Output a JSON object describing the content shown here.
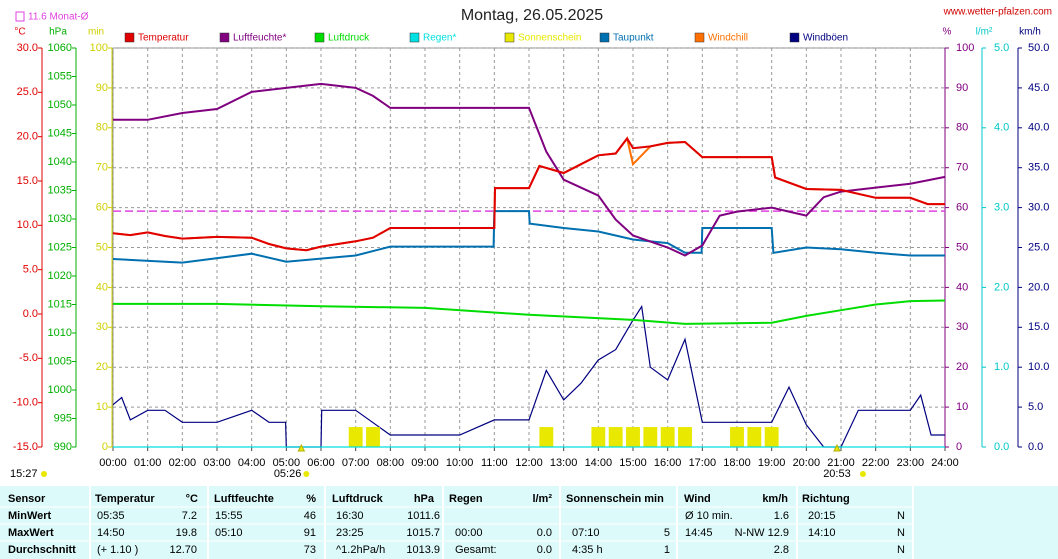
{
  "chart_data": {
    "type": "line",
    "title": "Montag, 26.05.2025",
    "source": "www.wetter-pfalzen.com",
    "monthly_mean": {
      "value": 11.6,
      "label": "11.6 Monat-Ø",
      "color": "#e040e0",
      "axis": "temp"
    },
    "updated": "15:27",
    "sunrise": "05:26",
    "sunset": "20:53",
    "grid": true,
    "xlim": [
      0,
      24
    ],
    "xticks": [
      {
        "value": 0,
        "label": "00:00"
      },
      {
        "value": 1,
        "label": "01:00"
      },
      {
        "value": 2,
        "label": "02:00"
      },
      {
        "value": 3,
        "label": "03:00"
      },
      {
        "value": 4,
        "label": "04:00"
      },
      {
        "value": 5,
        "label": "05:00"
      },
      {
        "value": 6,
        "label": "06:00"
      },
      {
        "value": 7,
        "label": "07:00"
      },
      {
        "value": 8,
        "label": "08:00"
      },
      {
        "value": 9,
        "label": "09:00"
      },
      {
        "value": 10,
        "label": "10:00"
      },
      {
        "value": 11,
        "label": "11:00"
      },
      {
        "value": 12,
        "label": "12:00"
      },
      {
        "value": 13,
        "label": "13:00"
      },
      {
        "value": 14,
        "label": "14:00"
      },
      {
        "value": 15,
        "label": "15:00"
      },
      {
        "value": 16,
        "label": "16:00"
      },
      {
        "value": 17,
        "label": "17:00"
      },
      {
        "value": 18,
        "label": "18:00"
      },
      {
        "value": 19,
        "label": "19:00"
      },
      {
        "value": 20,
        "label": "20:00"
      },
      {
        "value": 21,
        "label": "21:00"
      },
      {
        "value": 22,
        "label": "22:00"
      },
      {
        "value": 23,
        "label": "23:00"
      },
      {
        "value": 24,
        "label": "24:00"
      }
    ],
    "axes": {
      "temp": {
        "unit": "°C",
        "color": "#e00000",
        "side": "left",
        "lim": [
          -15,
          30
        ],
        "ticks": [
          {
            "value": -15,
            "label": "-15.0"
          },
          {
            "value": -10,
            "label": "-10.0"
          },
          {
            "value": -5,
            "label": "-5.0"
          },
          {
            "value": 0,
            "label": "0.0"
          },
          {
            "value": 5,
            "label": "5.0"
          },
          {
            "value": 10,
            "label": "10.0"
          },
          {
            "value": 15,
            "label": "15.0"
          },
          {
            "value": 20,
            "label": "20.0"
          },
          {
            "value": 25,
            "label": "25.0"
          },
          {
            "value": 30,
            "label": "30.0"
          }
        ]
      },
      "hpa": {
        "unit": "hPa",
        "color": "#00b000",
        "side": "left",
        "lim": [
          990,
          1060
        ],
        "ticks": [
          990,
          995,
          1000,
          1005,
          1010,
          1015,
          1020,
          1025,
          1030,
          1035,
          1040,
          1045,
          1050,
          1055,
          1060
        ]
      },
      "min": {
        "unit": "min",
        "color": "#d0d000",
        "side": "left",
        "lim": [
          0,
          100
        ],
        "ticks": [
          0,
          10,
          20,
          30,
          40,
          50,
          60,
          70,
          80,
          90,
          100
        ]
      },
      "pct": {
        "unit": "%",
        "color": "#800080",
        "side": "right",
        "lim": [
          0,
          100
        ],
        "grid": true,
        "ticks": [
          0,
          10,
          20,
          30,
          40,
          50,
          60,
          70,
          80,
          90,
          100
        ]
      },
      "rain": {
        "unit": "l/m²",
        "color": "#00c8c8",
        "side": "right",
        "lim": [
          0,
          5
        ],
        "ticks": [
          {
            "value": 0,
            "label": "0.0"
          },
          {
            "value": 1,
            "label": "1.0"
          },
          {
            "value": 2,
            "label": "2.0"
          },
          {
            "value": 3,
            "label": "3.0"
          },
          {
            "value": 4,
            "label": "4.0"
          },
          {
            "value": 5,
            "label": "5.0"
          }
        ]
      },
      "kmh": {
        "unit": "km/h",
        "color": "#000080",
        "side": "right",
        "lim": [
          0,
          50
        ],
        "ticks": [
          {
            "value": 0,
            "label": "0.0"
          },
          {
            "value": 5,
            "label": "5.0"
          },
          {
            "value": 10,
            "label": "10.0"
          },
          {
            "value": 15,
            "label": "15.0"
          },
          {
            "value": 20,
            "label": "20.0"
          },
          {
            "value": 25,
            "label": "25.0"
          },
          {
            "value": 30,
            "label": "30.0"
          },
          {
            "value": 35,
            "label": "35.0"
          },
          {
            "value": 40,
            "label": "40.0"
          },
          {
            "value": 45,
            "label": "45.0"
          },
          {
            "value": 50,
            "label": "50.0"
          }
        ]
      }
    },
    "series": [
      {
        "name": "Temperatur",
        "color": "#e00000",
        "axis": "temp",
        "x": [
          0,
          0.5,
          1,
          1.5,
          2,
          3,
          4,
          4.5,
          5,
          5.58,
          6,
          7,
          7.5,
          8,
          11,
          11.02,
          12,
          12.3,
          13,
          13.5,
          14,
          14.5,
          14.83,
          15,
          15.5,
          16,
          16.5,
          17,
          19,
          19.1,
          20,
          21,
          22,
          23,
          23.5,
          24
        ],
        "values": [
          9.1,
          8.9,
          9.2,
          8.8,
          8.5,
          8.7,
          8.6,
          7.9,
          7.4,
          7.2,
          7.6,
          8.2,
          8.6,
          9.7,
          9.7,
          14.2,
          14.2,
          16.7,
          15.9,
          16.9,
          17.9,
          18.1,
          19.8,
          18.7,
          18.9,
          19.3,
          19.4,
          17.7,
          17.7,
          15.4,
          14.1,
          14.0,
          13.1,
          13.1,
          12.4,
          12.4
        ]
      },
      {
        "name": "Luftfeuchte*",
        "color": "#800080",
        "axis": "pct",
        "x": [
          0,
          1,
          2,
          3,
          4,
          5,
          6,
          7,
          7.5,
          8,
          12,
          12.5,
          13,
          14,
          14.5,
          15,
          16,
          16.5,
          17,
          17.5,
          18,
          19,
          20,
          20.5,
          21,
          22,
          23,
          24
        ],
        "values": [
          82,
          82,
          83.7,
          84.7,
          89,
          90,
          91,
          90,
          88,
          85,
          85,
          74,
          67,
          63,
          57,
          53,
          50,
          48,
          50.5,
          58,
          59,
          60,
          58,
          62.6,
          64,
          65,
          66,
          67.7
        ]
      },
      {
        "name": "Luftdruck",
        "color": "#00dd00",
        "axis": "hpa",
        "x": [
          0,
          3,
          6,
          9,
          12,
          15,
          16.5,
          19,
          20,
          21,
          22,
          23,
          24
        ],
        "values": [
          1015.1,
          1015.1,
          1014.7,
          1014.4,
          1013.2,
          1012.3,
          1011.6,
          1011.8,
          1013,
          1014,
          1015,
          1015.6,
          1015.7
        ]
      },
      {
        "name": "Regen*",
        "color": "#00e0e0",
        "axis": "rain",
        "x": [
          0,
          24
        ],
        "values": [
          0,
          0
        ]
      },
      {
        "name": "Sonnenschein",
        "color": "#e8e800",
        "axis": "min",
        "type": "bar",
        "x": [
          7,
          7.5,
          12.5,
          14,
          14.5,
          15,
          15.5,
          16,
          16.5,
          18,
          18.5,
          19
        ],
        "values": [
          5,
          5,
          5,
          5,
          5,
          5,
          5,
          5,
          5,
          5,
          5,
          5
        ]
      },
      {
        "name": "Taupunkt",
        "color": "#0070b0",
        "axis": "temp",
        "x": [
          0,
          2,
          4,
          5,
          7,
          8,
          10.98,
          11,
          12,
          12.02,
          13,
          14,
          15,
          16,
          16.5,
          16.98,
          17,
          19,
          19.05,
          20,
          21,
          22,
          23,
          24
        ],
        "values": [
          6.2,
          5.8,
          6.8,
          5.9,
          6.6,
          7.6,
          7.6,
          11.6,
          11.6,
          10.2,
          9.7,
          9.3,
          8.4,
          8.0,
          6.9,
          6.9,
          9.7,
          9.7,
          6.9,
          7.5,
          7.3,
          6.9,
          6.6,
          6.6
        ]
      },
      {
        "name": "Windchill",
        "color": "#ff7000",
        "axis": "temp",
        "x": [
          0,
          0.5,
          1,
          1.5,
          2,
          3,
          4,
          4.5,
          5,
          5.58,
          6,
          7,
          7.5,
          8,
          11,
          11.02,
          12,
          12.3,
          13,
          13.5,
          14,
          14.5,
          14.83,
          15,
          15.5,
          16,
          16.5,
          17,
          19,
          19.1,
          20,
          21,
          22,
          23,
          23.5,
          24
        ],
        "values": [
          9.1,
          8.9,
          9.2,
          8.8,
          8.5,
          8.7,
          8.6,
          7.9,
          7.4,
          7.2,
          7.6,
          8.2,
          8.6,
          9.7,
          9.7,
          14.2,
          14.2,
          16.7,
          15.9,
          16.9,
          17.9,
          18.1,
          19.8,
          16.9,
          18.9,
          19.3,
          19.4,
          17.7,
          17.7,
          15.4,
          14.1,
          14.0,
          13.1,
          13.1,
          12.4,
          12.4
        ]
      },
      {
        "name": "Windböen",
        "color": "#000080",
        "axis": "kmh",
        "x": [
          0,
          0.25,
          0.5,
          1,
          1.5,
          2,
          3,
          4,
          4.5,
          4.98,
          5,
          6,
          6.02,
          7,
          8,
          10,
          11,
          12,
          12.5,
          13,
          13.5,
          14,
          14.5,
          15,
          15.25,
          15.5,
          16,
          16.5,
          17,
          18,
          19,
          19.5,
          20,
          20.5,
          21,
          21.5,
          22,
          23,
          23.3,
          23.6,
          24
        ],
        "values": [
          5.3,
          6.2,
          3.4,
          4.6,
          4.6,
          3.1,
          3.1,
          4.6,
          3.1,
          3.1,
          0,
          0,
          4.6,
          4.6,
          1.5,
          1.5,
          3.4,
          3.4,
          9.6,
          5.9,
          8,
          10.9,
          12.2,
          15.9,
          17.6,
          10,
          8.4,
          13.5,
          3.1,
          3.1,
          3.1,
          7.5,
          2.8,
          0,
          0,
          4.6,
          4.6,
          4.6,
          6.5,
          1.5,
          1.5
        ]
      }
    ]
  },
  "table": {
    "header": [
      "Sensor",
      "Temperatur",
      "°C",
      "Luftfeuchte",
      "%",
      "Luftdruck",
      "hPa",
      "Regen",
      "l/m²",
      "Sonnenschein min",
      "Wind",
      "km/h",
      "Richtung"
    ],
    "rows": [
      [
        "MinWert",
        "05:35",
        "7.2",
        "15:55",
        "46",
        "16:30",
        "1011.6",
        null,
        null,
        null,
        null,
        "Ø 10 min.",
        "1.6",
        "20:15",
        "N"
      ],
      [
        "MaxWert",
        "14:50",
        "19.8",
        "05:10",
        "91",
        "23:25",
        "1015.7",
        "00:00",
        "0.0",
        "07:10",
        "5",
        "14:45",
        "N-NW 12.9",
        "14:10",
        "N"
      ],
      [
        "Durchschnitt",
        "(+ 1.10 )",
        "12.70",
        null,
        "73",
        "^1.2hPa/h",
        "1013.9",
        "Gesamt:",
        "0.0",
        "4:35 h",
        "1",
        null,
        "2.8",
        null,
        "N"
      ]
    ]
  }
}
